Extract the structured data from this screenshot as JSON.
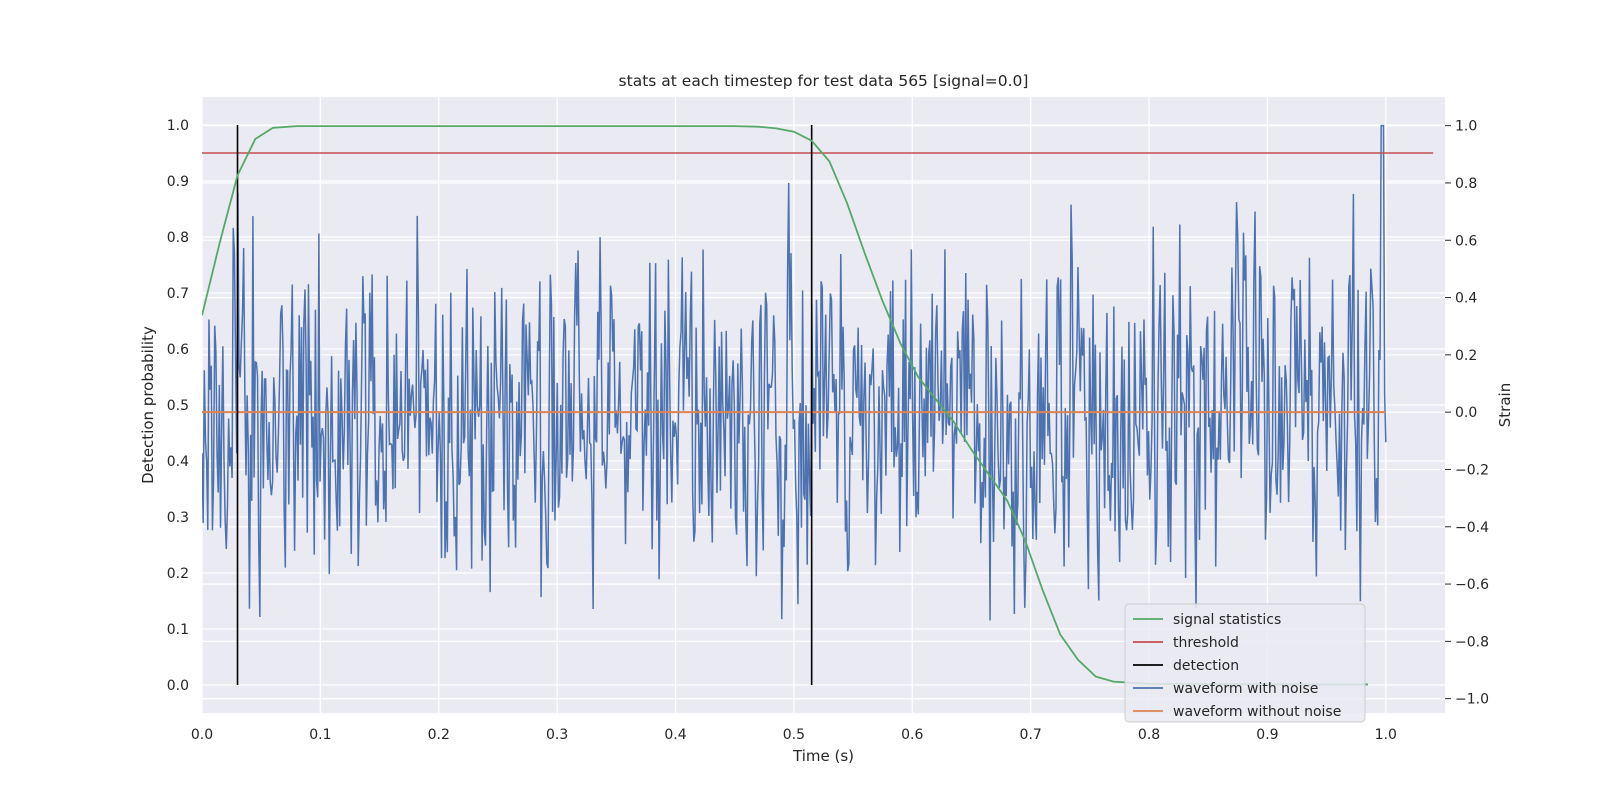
{
  "chart_data": {
    "type": "line",
    "title": "stats at each timestep for test data 565 [signal=0.0]",
    "xlabel": "Time (s)",
    "ylabel": "Detection probability",
    "ylabel_right": "Strain",
    "xlim": [
      0.0,
      1.05
    ],
    "ylim": [
      -0.05,
      1.05
    ],
    "ylim_right": [
      -1.05,
      1.1
    ],
    "x_ticks": [
      0.0,
      0.1,
      0.2,
      0.3,
      0.4,
      0.5,
      0.6,
      0.7,
      0.8,
      0.9,
      1.0
    ],
    "y_ticks": [
      0.0,
      0.1,
      0.2,
      0.3,
      0.4,
      0.5,
      0.6,
      0.7,
      0.8,
      0.9,
      1.0
    ],
    "y_ticks_right": [
      -1.0,
      -0.8,
      -0.6,
      -0.4,
      -0.2,
      0.0,
      0.2,
      0.4,
      0.6,
      0.8,
      1.0
    ],
    "grid": true,
    "legend_position": "bottom-right",
    "series": [
      {
        "name": "signal statistics",
        "color": "#55a868",
        "axis": "left",
        "x": [
          0.0,
          0.015,
          0.03,
          0.045,
          0.06,
          0.08,
          0.1,
          0.2,
          0.3,
          0.4,
          0.45,
          0.47,
          0.485,
          0.5,
          0.515,
          0.53,
          0.545,
          0.56,
          0.575,
          0.59,
          0.605,
          0.62,
          0.635,
          0.65,
          0.665,
          0.68,
          0.695,
          0.71,
          0.725,
          0.74,
          0.755,
          0.77,
          0.8,
          0.9,
          0.985
        ],
        "y": [
          0.66,
          0.79,
          0.91,
          0.975,
          0.995,
          0.998,
          0.998,
          0.998,
          0.998,
          0.998,
          0.998,
          0.997,
          0.994,
          0.988,
          0.972,
          0.935,
          0.86,
          0.77,
          0.685,
          0.61,
          0.55,
          0.51,
          0.47,
          0.42,
          0.375,
          0.33,
          0.26,
          0.17,
          0.09,
          0.045,
          0.015,
          0.006,
          0.002,
          0.001,
          0.001
        ]
      },
      {
        "name": "threshold",
        "color": "#c44e52",
        "axis": "left",
        "x": [
          0.0,
          1.04
        ],
        "y": [
          0.95,
          0.95
        ]
      },
      {
        "name": "detection",
        "color": "#000000",
        "axis": "left",
        "segments": [
          {
            "x": 0.03,
            "y": [
              0.0,
              1.0
            ]
          },
          {
            "x": 0.515,
            "y": [
              0.0,
              1.0
            ]
          }
        ]
      },
      {
        "name": "waveform with noise",
        "color": "#4c72b0",
        "axis": "right",
        "x_range": [
          0.0,
          1.0
        ],
        "samples": 1024,
        "amplitude_range": [
          -0.95,
          1.0
        ],
        "peak": {
          "x": 0.997,
          "y": 1.0
        }
      },
      {
        "name": "waveform without noise",
        "color": "#dd8452",
        "axis": "right",
        "x": [
          0.0,
          1.0
        ],
        "y": [
          0.0,
          0.0
        ]
      }
    ]
  }
}
